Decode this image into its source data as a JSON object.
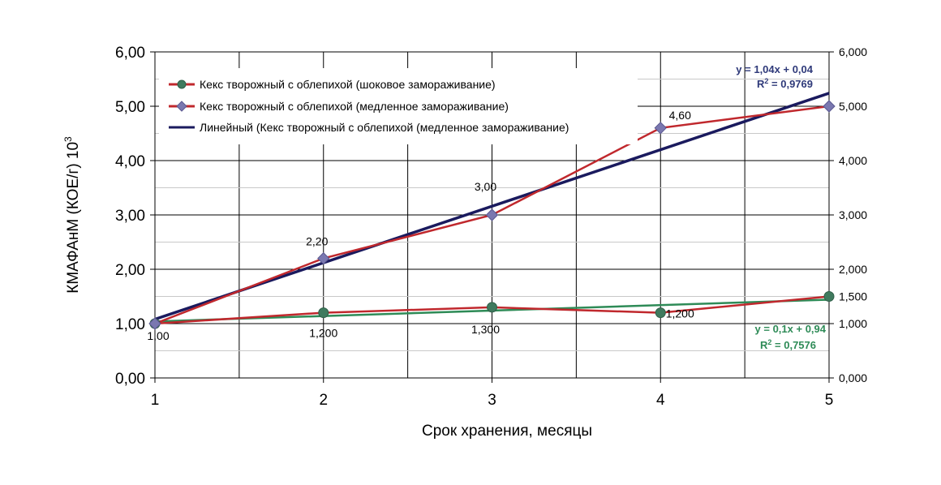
{
  "chart_data": {
    "type": "line",
    "xlabel": "Срок хранения, месяцы",
    "ylabel": "КМАФАнМ (КОЕ/г) 10",
    "ylabel_sup": "3",
    "x": [
      1,
      2,
      3,
      4,
      5
    ],
    "x_ticks": [
      "1",
      "2",
      "3",
      "4",
      "5"
    ],
    "ylim": [
      0,
      6
    ],
    "y_ticks_left": [
      "0,00",
      "1,00",
      "2,00",
      "3,00",
      "4,00",
      "5,00",
      "6,00"
    ],
    "y_ticks_right": [
      "0,000",
      "1,000",
      "1,500",
      "2,000",
      "3,000",
      "4,000",
      "5,000",
      "6,000"
    ],
    "y_ticks_right_values": [
      0,
      1,
      1.5,
      2,
      3,
      4,
      5,
      6
    ],
    "grid": true,
    "legend_position": "top-left",
    "series": [
      {
        "name": "Кекс творожный с облепихой (шоковое замораживание)",
        "values": [
          1.0,
          1.2,
          1.3,
          1.2,
          1.5
        ],
        "line_color": "#c0282d",
        "marker": "circle",
        "marker_color": "#3f7a5e",
        "data_labels": [
          "",
          "1,200",
          "1,300",
          "1,200",
          ""
        ]
      },
      {
        "name": "Кекс творожный с облепихой (медленное замораживание)",
        "values": [
          1.0,
          2.2,
          3.0,
          4.6,
          5.0
        ],
        "line_color": "#c0282d",
        "marker": "diamond",
        "marker_color": "#7a78b0",
        "data_labels": [
          "1,00",
          "2,20",
          "3,00",
          "4,60",
          ""
        ]
      },
      {
        "name": "Линейный (Кекс творожный с облепихой (медленное замораживание)",
        "trendline": {
          "slope": 1.04,
          "intercept": 0.04
        },
        "line_color": "#1a1a5e",
        "marker": "none"
      }
    ],
    "trendline_shock": {
      "slope": 0.1,
      "intercept": 0.94,
      "line_color": "#2e8b57"
    },
    "equations": {
      "slow": {
        "eq": "y = 1,04x + 0,04",
        "r2_prefix": "R",
        "r2_sup": "2",
        "r2_value": " = 0,9769"
      },
      "shock": {
        "eq": "y = 0,1x + 0,94",
        "r2_prefix": "R",
        "r2_sup": "2",
        "r2_value": " = 0,7576"
      }
    }
  }
}
